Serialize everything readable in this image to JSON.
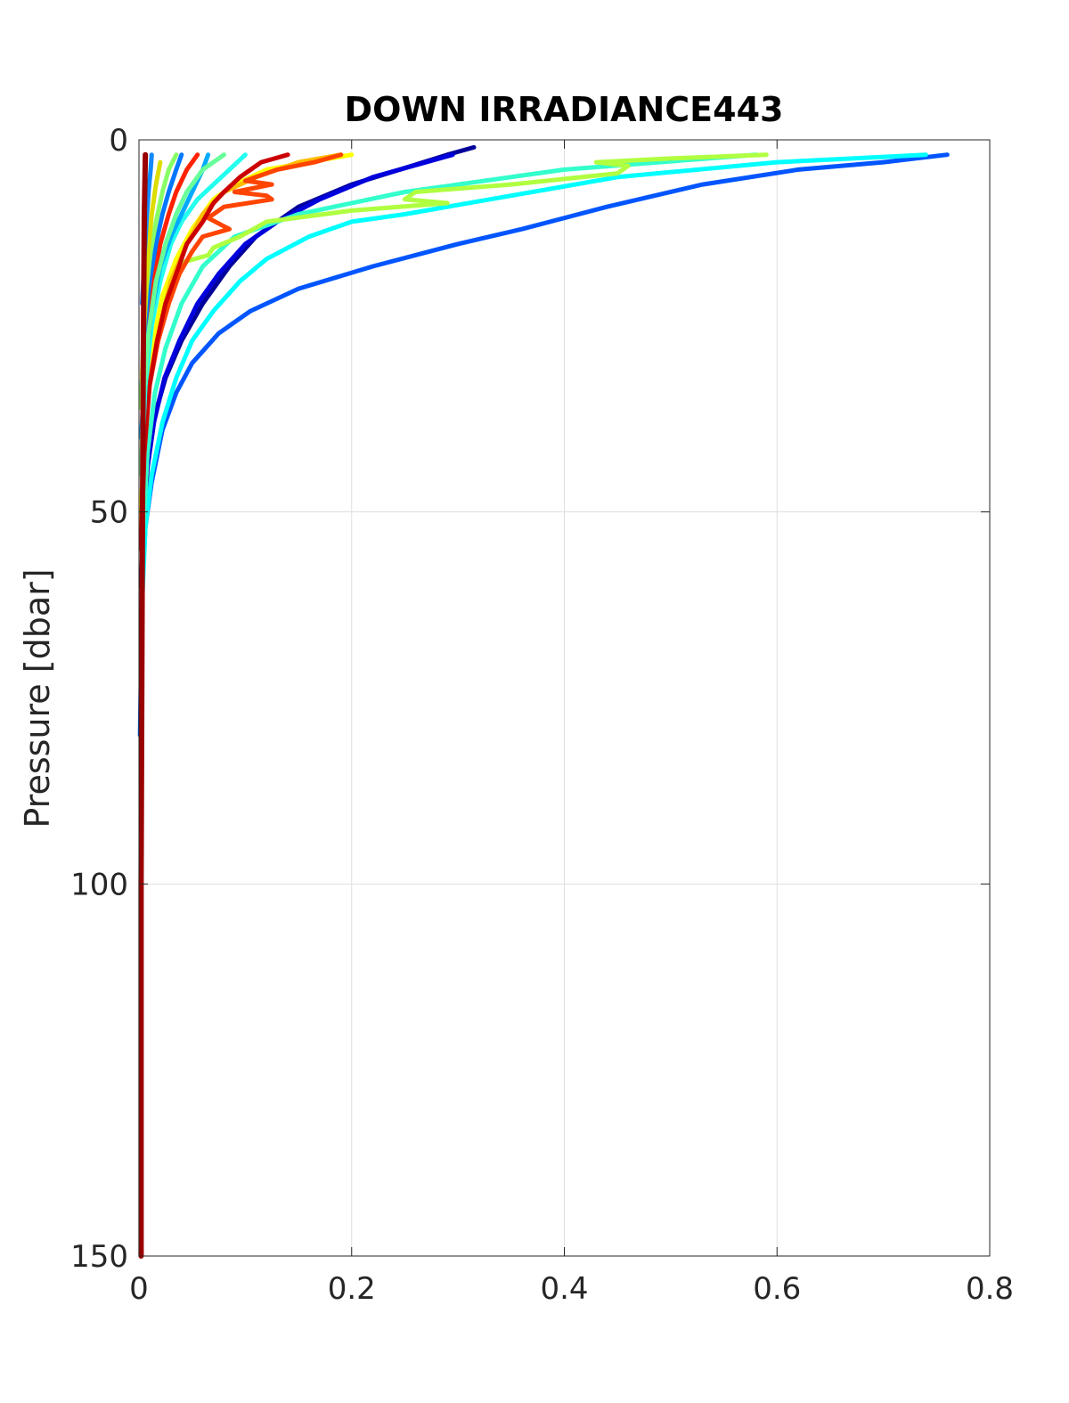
{
  "chart_data": {
    "type": "line",
    "title": "DOWN IRRADIANCE443",
    "xlabel": "",
    "ylabel": "Pressure [dbar]",
    "xlim": [
      0,
      0.8
    ],
    "ylim": [
      0,
      150
    ],
    "y_reversed": true,
    "xticks": [
      "0",
      "0.2",
      "0.4",
      "0.6",
      "0.8"
    ],
    "yticks": [
      "0",
      "50",
      "100",
      "150"
    ],
    "grid": true,
    "series": [
      {
        "color": "#000099",
        "points": [
          [
            0.315,
            1
          ],
          [
            0.29,
            2
          ],
          [
            0.2,
            6
          ],
          [
            0.15,
            9
          ],
          [
            0.11,
            13
          ],
          [
            0.085,
            17
          ],
          [
            0.06,
            22
          ],
          [
            0.04,
            27
          ],
          [
            0.025,
            32
          ],
          [
            0.015,
            37
          ],
          [
            0.008,
            44
          ],
          [
            0.004,
            52
          ],
          [
            0.002,
            60
          ]
        ]
      },
      {
        "color": "#0000dd",
        "points": [
          [
            0.295,
            2
          ],
          [
            0.22,
            5
          ],
          [
            0.17,
            8
          ],
          [
            0.13,
            11
          ],
          [
            0.1,
            14
          ],
          [
            0.075,
            18
          ],
          [
            0.055,
            22
          ],
          [
            0.038,
            27
          ],
          [
            0.024,
            32
          ],
          [
            0.014,
            38
          ],
          [
            0.007,
            45
          ],
          [
            0.003,
            55
          ]
        ]
      },
      {
        "color": "#0055ff",
        "points": [
          [
            0.76,
            2
          ],
          [
            0.7,
            3
          ],
          [
            0.62,
            4
          ],
          [
            0.53,
            6
          ],
          [
            0.44,
            9
          ],
          [
            0.36,
            12
          ],
          [
            0.3,
            14
          ],
          [
            0.22,
            17
          ],
          [
            0.15,
            20
          ],
          [
            0.105,
            23
          ],
          [
            0.075,
            26
          ],
          [
            0.05,
            30
          ],
          [
            0.035,
            34
          ],
          [
            0.022,
            39
          ],
          [
            0.012,
            46
          ],
          [
            0.006,
            52
          ],
          [
            0.003,
            60
          ],
          [
            0.001,
            80
          ]
        ]
      },
      {
        "color": "#00ffff",
        "points": [
          [
            0.74,
            2
          ],
          [
            0.6,
            3
          ],
          [
            0.45,
            5
          ],
          [
            0.33,
            8
          ],
          [
            0.25,
            10
          ],
          [
            0.2,
            11
          ],
          [
            0.16,
            13
          ],
          [
            0.12,
            16
          ],
          [
            0.095,
            19
          ],
          [
            0.07,
            23
          ],
          [
            0.05,
            27
          ],
          [
            0.035,
            32
          ],
          [
            0.022,
            38
          ],
          [
            0.012,
            45
          ],
          [
            0.006,
            52
          ],
          [
            0.003,
            62
          ]
        ]
      },
      {
        "color": "#33ffcc",
        "points": [
          [
            0.58,
            2
          ],
          [
            0.4,
            4
          ],
          [
            0.25,
            7
          ],
          [
            0.15,
            10
          ],
          [
            0.09,
            13
          ],
          [
            0.06,
            17
          ],
          [
            0.04,
            22
          ],
          [
            0.025,
            28
          ],
          [
            0.015,
            34
          ],
          [
            0.008,
            42
          ],
          [
            0.003,
            55
          ]
        ]
      },
      {
        "color": "#b0ff40",
        "points": [
          [
            0.59,
            2
          ],
          [
            0.5,
            2.5
          ],
          [
            0.43,
            3
          ],
          [
            0.46,
            3.5
          ],
          [
            0.45,
            4.5
          ],
          [
            0.35,
            6
          ],
          [
            0.26,
            7
          ],
          [
            0.25,
            8
          ],
          [
            0.29,
            8.5
          ],
          [
            0.2,
            9.5
          ],
          [
            0.12,
            11
          ],
          [
            0.095,
            13
          ],
          [
            0.07,
            14.5
          ],
          [
            0.065,
            15.5
          ],
          [
            0.04,
            16.5
          ],
          [
            0.025,
            20
          ],
          [
            0.015,
            27
          ],
          [
            0.008,
            35
          ],
          [
            0.003,
            45
          ]
        ]
      },
      {
        "color": "#ffff00",
        "points": [
          [
            0.2,
            2
          ],
          [
            0.16,
            3
          ],
          [
            0.12,
            4
          ],
          [
            0.09,
            6
          ],
          [
            0.07,
            8
          ],
          [
            0.05,
            12
          ],
          [
            0.035,
            16
          ],
          [
            0.022,
            21
          ],
          [
            0.012,
            28
          ],
          [
            0.005,
            38
          ],
          [
            0.002,
            50
          ]
        ]
      },
      {
        "color": "#ffbb00",
        "points": [
          [
            0.19,
            2
          ],
          [
            0.15,
            3
          ],
          [
            0.11,
            5
          ],
          [
            0.08,
            7
          ],
          [
            0.06,
            10
          ],
          [
            0.045,
            14
          ],
          [
            0.03,
            19
          ],
          [
            0.02,
            25
          ],
          [
            0.01,
            32
          ],
          [
            0.004,
            42
          ],
          [
            0.002,
            55
          ]
        ]
      },
      {
        "color": "#ff4400",
        "points": [
          [
            0.19,
            2
          ],
          [
            0.165,
            3
          ],
          [
            0.13,
            4
          ],
          [
            0.1,
            5.5
          ],
          [
            0.125,
            6
          ],
          [
            0.09,
            7
          ],
          [
            0.12,
            7.5
          ],
          [
            0.125,
            8
          ],
          [
            0.08,
            9
          ],
          [
            0.065,
            10.5
          ],
          [
            0.085,
            12
          ],
          [
            0.06,
            13
          ],
          [
            0.05,
            15
          ],
          [
            0.038,
            18
          ],
          [
            0.028,
            22
          ],
          [
            0.018,
            27
          ],
          [
            0.01,
            33
          ],
          [
            0.004,
            42
          ],
          [
            0.002,
            55
          ]
        ]
      },
      {
        "color": "#ff2200",
        "points": [
          [
            0.055,
            2
          ],
          [
            0.045,
            4
          ],
          [
            0.035,
            7
          ],
          [
            0.028,
            10
          ],
          [
            0.02,
            14
          ],
          [
            0.015,
            18
          ],
          [
            0.01,
            24
          ],
          [
            0.006,
            32
          ],
          [
            0.003,
            42
          ]
        ]
      },
      {
        "color": "#cc0000",
        "points": [
          [
            0.14,
            2
          ],
          [
            0.115,
            3
          ],
          [
            0.095,
            5
          ],
          [
            0.08,
            7
          ],
          [
            0.07,
            8.5
          ],
          [
            0.06,
            11
          ],
          [
            0.045,
            14
          ],
          [
            0.035,
            18
          ],
          [
            0.025,
            22
          ],
          [
            0.017,
            27
          ],
          [
            0.01,
            33
          ],
          [
            0.005,
            42
          ],
          [
            0.002,
            55
          ]
        ]
      },
      {
        "color": "#22ffee",
        "points": [
          [
            0.1,
            2
          ],
          [
            0.085,
            4
          ],
          [
            0.07,
            6
          ],
          [
            0.055,
            8
          ],
          [
            0.04,
            11
          ],
          [
            0.03,
            14
          ],
          [
            0.02,
            19
          ],
          [
            0.012,
            25
          ],
          [
            0.006,
            33
          ],
          [
            0.002,
            45
          ]
        ]
      },
      {
        "color": "#00aaff",
        "points": [
          [
            0.065,
            2
          ],
          [
            0.06,
            4
          ],
          [
            0.05,
            7
          ],
          [
            0.04,
            10
          ],
          [
            0.03,
            13
          ],
          [
            0.02,
            17
          ],
          [
            0.012,
            23
          ],
          [
            0.006,
            30
          ],
          [
            0.002,
            40
          ]
        ]
      },
      {
        "color": "#0077ff",
        "points": [
          [
            0.04,
            2
          ],
          [
            0.035,
            4
          ],
          [
            0.028,
            7
          ],
          [
            0.022,
            10
          ],
          [
            0.016,
            14
          ],
          [
            0.01,
            19
          ],
          [
            0.005,
            26
          ],
          [
            0.002,
            35
          ]
        ]
      },
      {
        "color": "#66ff99",
        "points": [
          [
            0.08,
            2
          ],
          [
            0.06,
            4
          ],
          [
            0.045,
            7
          ],
          [
            0.035,
            10
          ],
          [
            0.025,
            14
          ],
          [
            0.016,
            19
          ],
          [
            0.009,
            26
          ],
          [
            0.004,
            35
          ],
          [
            0.002,
            45
          ]
        ]
      },
      {
        "color": "#88ff66",
        "points": [
          [
            0.035,
            2
          ],
          [
            0.028,
            4
          ],
          [
            0.022,
            7
          ],
          [
            0.016,
            11
          ],
          [
            0.011,
            15
          ],
          [
            0.007,
            20
          ],
          [
            0.004,
            27
          ],
          [
            0.002,
            36
          ]
        ]
      },
      {
        "color": "#dddd00",
        "points": [
          [
            0.02,
            3
          ],
          [
            0.016,
            6
          ],
          [
            0.012,
            10
          ],
          [
            0.008,
            16
          ],
          [
            0.005,
            24
          ],
          [
            0.003,
            32
          ]
        ]
      },
      {
        "color": "#1188ff",
        "points": [
          [
            0.012,
            2
          ],
          [
            0.011,
            4
          ],
          [
            0.009,
            7
          ],
          [
            0.007,
            11
          ],
          [
            0.005,
            16
          ],
          [
            0.003,
            22
          ]
        ]
      },
      {
        "color": "#990000",
        "points": [
          [
            0.006,
            2
          ],
          [
            0.005,
            10
          ],
          [
            0.004,
            30
          ],
          [
            0.003,
            60
          ],
          [
            0.002,
            100
          ],
          [
            0.002,
            150
          ]
        ]
      }
    ]
  }
}
